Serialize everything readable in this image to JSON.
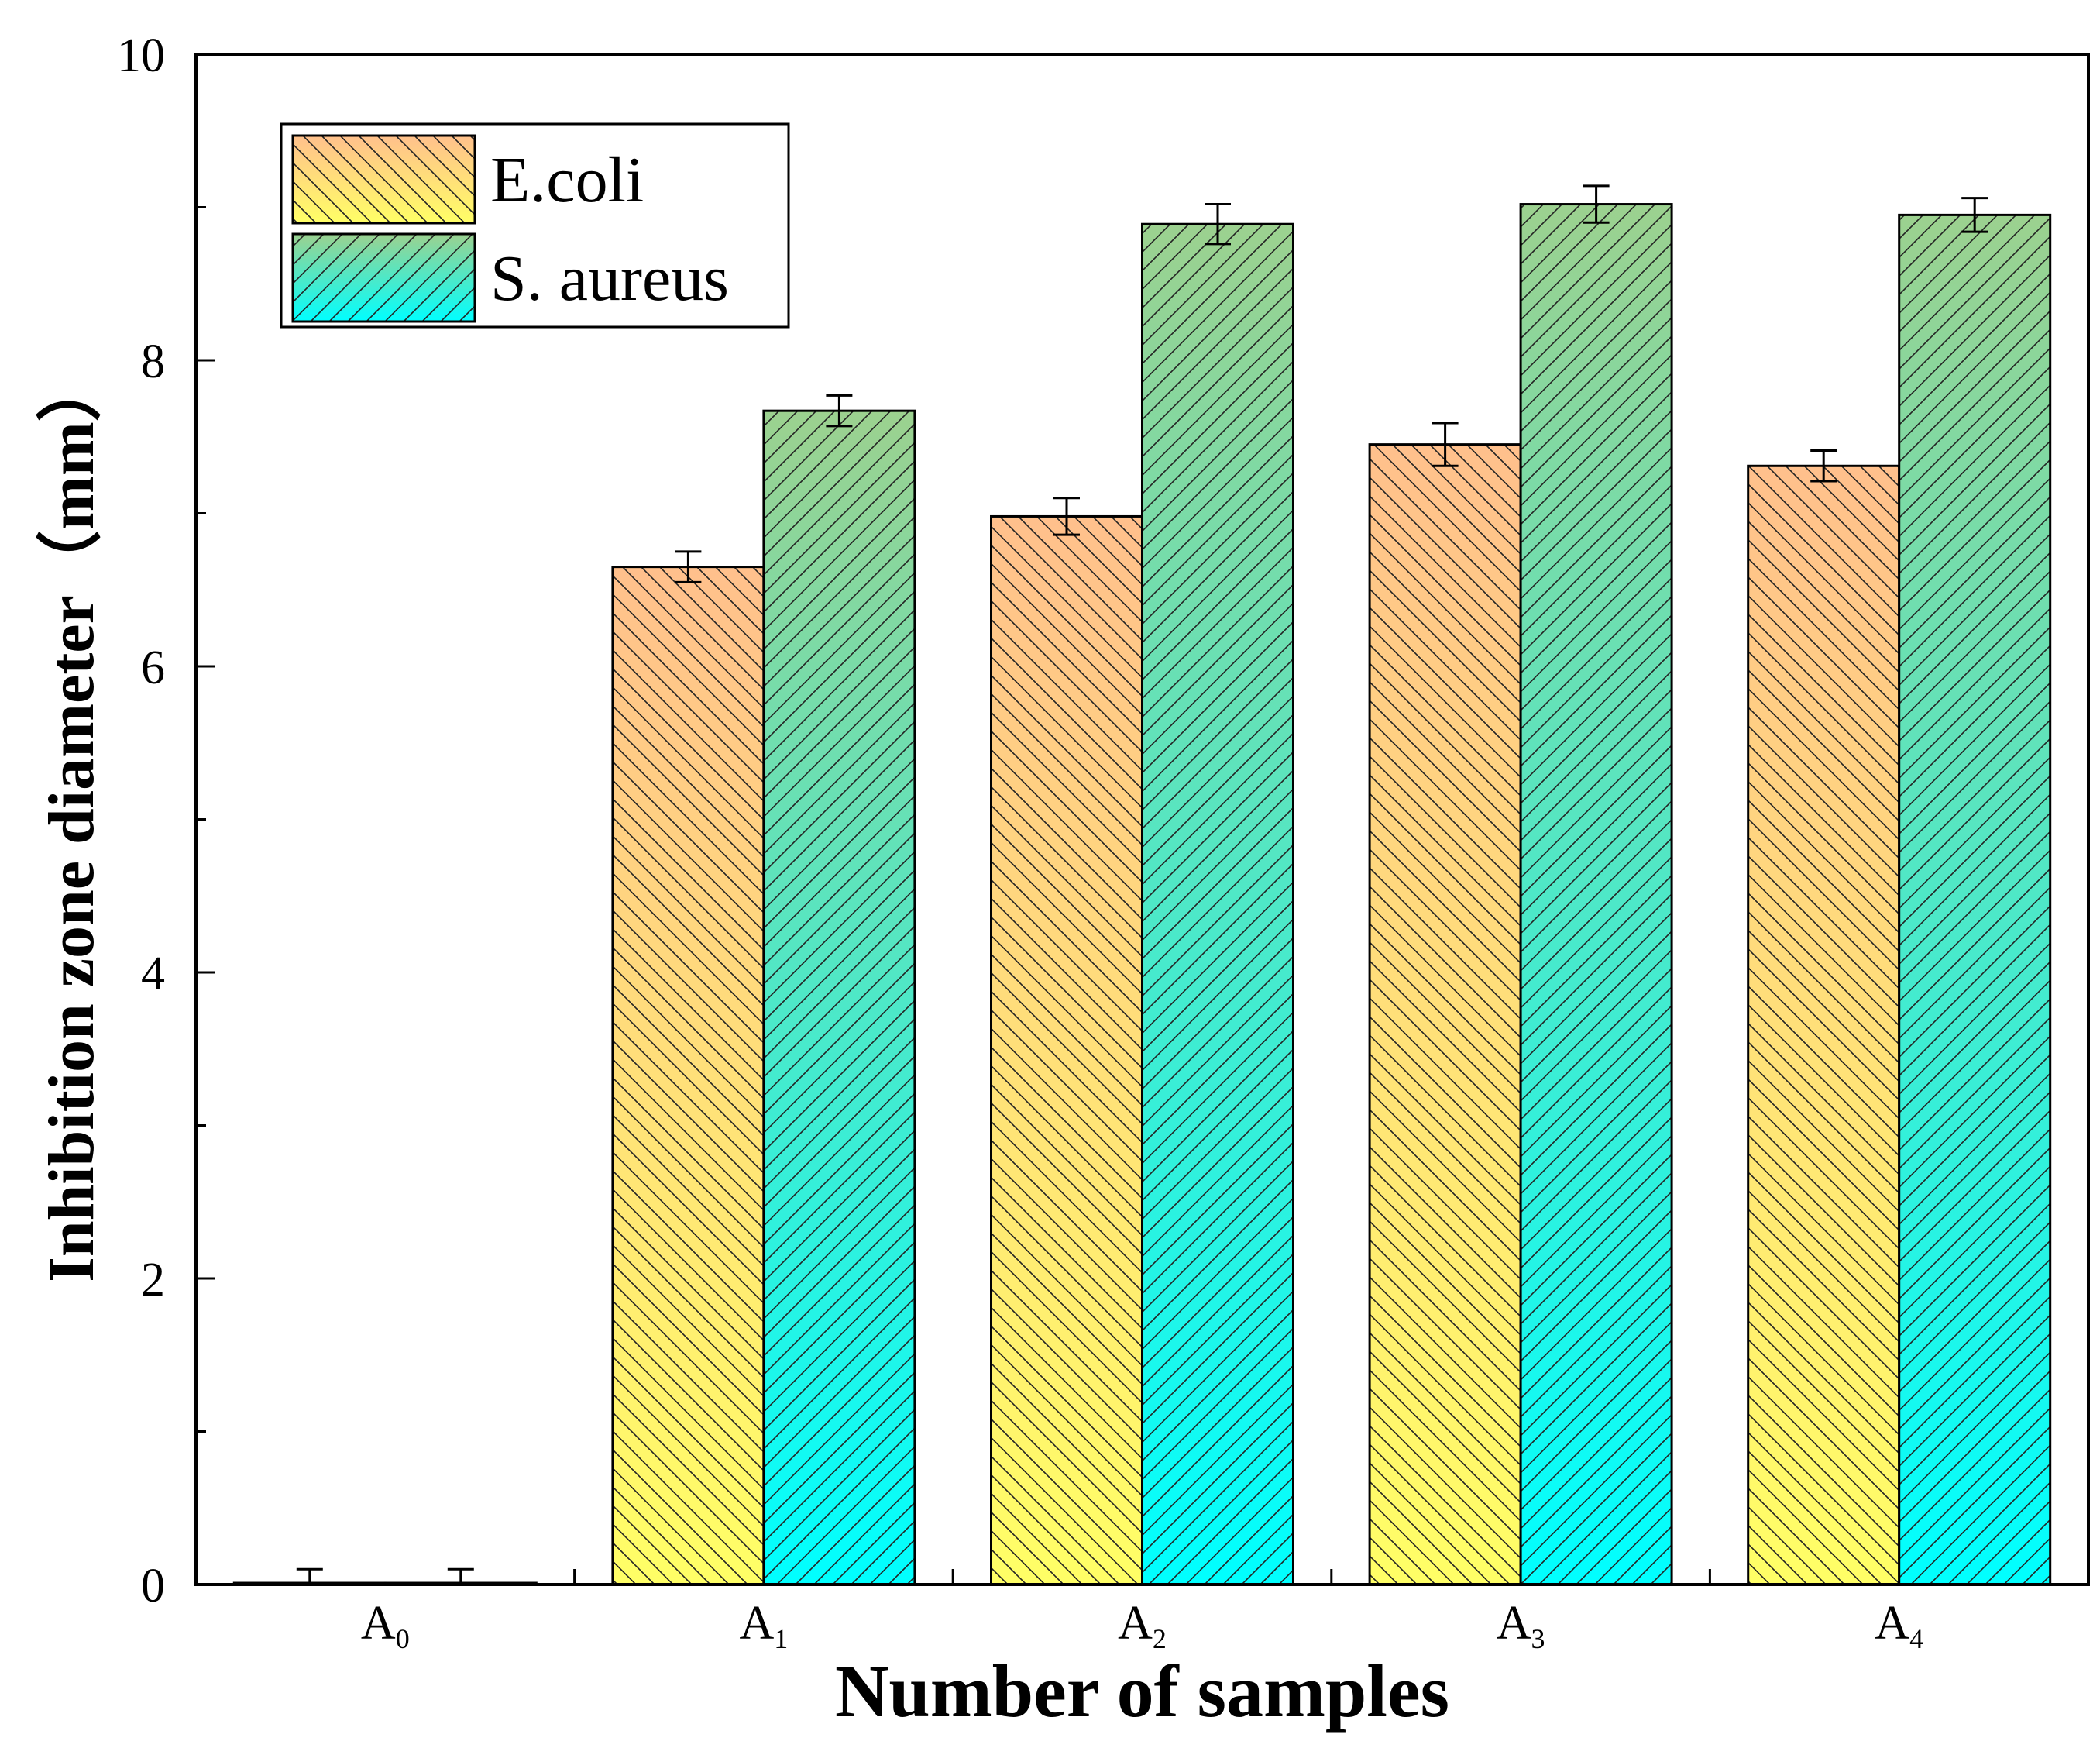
{
  "chart_data": {
    "type": "bar",
    "title": "",
    "xlabel": "Number of samples",
    "ylabel": "Inhibition zone diameter（mm）",
    "categories": [
      {
        "base": "A",
        "sub": "0"
      },
      {
        "base": "A",
        "sub": "1"
      },
      {
        "base": "A",
        "sub": "2"
      },
      {
        "base": "A",
        "sub": "3"
      },
      {
        "base": "A",
        "sub": "4"
      }
    ],
    "series": [
      {
        "name": "E.coli",
        "values": [
          0,
          6.65,
          6.98,
          7.45,
          7.31
        ],
        "errors": [
          0.1,
          0.1,
          0.12,
          0.14,
          0.1
        ],
        "gradient_top": "#FFC08C",
        "gradient_bottom": "#FFFF66",
        "hatch": "backslash"
      },
      {
        "name": "S. aureus",
        "values": [
          0,
          7.67,
          8.89,
          9.02,
          8.95
        ],
        "errors": [
          0.1,
          0.1,
          0.13,
          0.12,
          0.11
        ],
        "gradient_top": "#9CD18F",
        "gradient_bottom": "#00FFFF",
        "hatch": "slash"
      }
    ],
    "ylim": [
      0,
      10
    ],
    "yticks": [
      0,
      2,
      4,
      6,
      8,
      10
    ],
    "legend_position": "top-left",
    "grid": false
  }
}
